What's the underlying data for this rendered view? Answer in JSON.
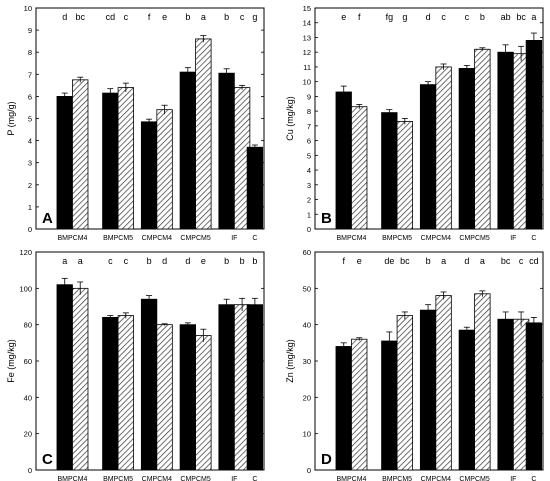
{
  "chart_data": [
    {
      "type": "bar",
      "panel_label": "A",
      "ylabel": "P (mg/g)",
      "ylim": [
        0,
        10
      ],
      "yticks": [
        0,
        1,
        2,
        3,
        4,
        5,
        6,
        7,
        8,
        9,
        10
      ],
      "categories": [
        "BMPCM4",
        "BMPCM5",
        "CMPCM4",
        "CMPCM5",
        "IF",
        "C"
      ],
      "series": [
        {
          "values": [
            6.0,
            6.15,
            4.85,
            7.1,
            7.05,
            3.7
          ],
          "errors": [
            0.15,
            0.2,
            0.12,
            0.2,
            0.2,
            0.1
          ],
          "letters": [
            "d",
            "cd",
            "f",
            "b",
            "b",
            "g"
          ]
        },
        {
          "values": [
            6.75,
            6.4,
            5.4,
            8.6,
            6.4,
            null
          ],
          "errors": [
            0.12,
            0.2,
            0.2,
            0.15,
            0.1,
            null
          ],
          "letters": [
            "bc",
            "c",
            "e",
            "a",
            "c",
            null
          ]
        }
      ]
    },
    {
      "type": "bar",
      "panel_label": "B",
      "ylabel": "Cu (mg/kg)",
      "ylim": [
        0,
        15
      ],
      "yticks": [
        0,
        1,
        2,
        3,
        4,
        5,
        6,
        7,
        8,
        9,
        10,
        11,
        12,
        13,
        14,
        15
      ],
      "categories": [
        "BMPCM4",
        "BMPCM5",
        "CMPCM4",
        "CMPCM5",
        "IF",
        "C"
      ],
      "series": [
        {
          "values": [
            9.3,
            7.9,
            9.8,
            10.9,
            12.0,
            12.8
          ],
          "errors": [
            0.4,
            0.2,
            0.2,
            0.2,
            0.5,
            0.5
          ],
          "letters": [
            "e",
            "fg",
            "d",
            "c",
            "ab",
            "a"
          ]
        },
        {
          "values": [
            8.3,
            7.3,
            11.0,
            12.2,
            11.9,
            null
          ],
          "errors": [
            0.15,
            0.2,
            0.2,
            0.1,
            0.5,
            null
          ],
          "letters": [
            "f",
            "g",
            "c",
            "b",
            "bc",
            null
          ]
        }
      ]
    },
    {
      "type": "bar",
      "panel_label": "C",
      "ylabel": "Fe (mg/kg)",
      "ylim": [
        0,
        120
      ],
      "yticks": [
        0,
        20,
        40,
        60,
        80,
        100,
        120
      ],
      "categories": [
        "BMPCM4",
        "BMPCM5",
        "CMPCM4",
        "CMPCM5",
        "IF",
        "C"
      ],
      "series": [
        {
          "values": [
            102,
            84,
            94,
            80,
            91,
            91
          ],
          "errors": [
            3.5,
            1,
            2,
            1,
            3,
            3.5
          ],
          "letters": [
            "a",
            "c",
            "b",
            "d",
            "b",
            "b"
          ]
        },
        {
          "values": [
            100,
            85,
            80,
            74,
            91,
            null
          ],
          "errors": [
            3.5,
            1.5,
            0.5,
            3.5,
            3.5,
            null
          ],
          "letters": [
            "a",
            "c",
            "d",
            "e",
            "b",
            null
          ]
        }
      ]
    },
    {
      "type": "bar",
      "panel_label": "D",
      "ylabel": "Zn (mg/kg)",
      "ylim": [
        0,
        60
      ],
      "yticks": [
        0,
        10,
        20,
        30,
        40,
        50,
        60
      ],
      "categories": [
        "BMPCM4",
        "BMPCM5",
        "CMPCM4",
        "CMPCM5",
        "IF",
        "C"
      ],
      "series": [
        {
          "values": [
            34,
            35.5,
            44,
            38.5,
            41.5,
            40.5
          ],
          "errors": [
            1,
            2.5,
            1.5,
            0.8,
            2,
            1.5
          ],
          "letters": [
            "f",
            "de",
            "b",
            "d",
            "bc",
            "cd"
          ]
        },
        {
          "values": [
            36,
            42.5,
            48,
            48.5,
            41.5,
            null
          ],
          "errors": [
            0.4,
            1,
            1,
            0.8,
            2,
            null
          ],
          "letters": [
            "e",
            "bc",
            "a",
            "a",
            "c",
            null
          ]
        }
      ]
    }
  ],
  "colors": {
    "solid_bar": "#000000",
    "hatched_bar": "#ffffff",
    "hatch_line": "#333333",
    "axis": "#000000",
    "background": "#ffffff"
  }
}
